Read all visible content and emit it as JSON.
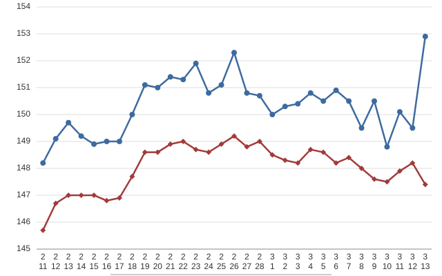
{
  "chart_data": {
    "type": "line",
    "categories": [
      [
        "2",
        "11"
      ],
      [
        "2",
        "12"
      ],
      [
        "2",
        "13"
      ],
      [
        "2",
        "14"
      ],
      [
        "2",
        "15"
      ],
      [
        "2",
        "16"
      ],
      [
        "2",
        "17"
      ],
      [
        "2",
        "18"
      ],
      [
        "2",
        "19"
      ],
      [
        "2",
        "20"
      ],
      [
        "2",
        "21"
      ],
      [
        "2",
        "22"
      ],
      [
        "2",
        "23"
      ],
      [
        "2",
        "24"
      ],
      [
        "2",
        "25"
      ],
      [
        "2",
        "26"
      ],
      [
        "2",
        "27"
      ],
      [
        "2",
        "28"
      ],
      [
        "3",
        "1"
      ],
      [
        "3",
        "2"
      ],
      [
        "3",
        "3"
      ],
      [
        "3",
        "4"
      ],
      [
        "3",
        "5"
      ],
      [
        "3",
        "6"
      ],
      [
        "3",
        "7"
      ],
      [
        "3",
        "8"
      ],
      [
        "3",
        "9"
      ],
      [
        "3",
        "10"
      ],
      [
        "3",
        "11"
      ],
      [
        "3",
        "12"
      ],
      [
        "3",
        "13"
      ]
    ],
    "series": [
      {
        "color": "#3d6a9f",
        "marker": "circle",
        "values": [
          148.2,
          149.1,
          149.7,
          149.2,
          148.9,
          149.0,
          149.0,
          150.0,
          151.1,
          151.0,
          151.4,
          151.3,
          151.9,
          150.8,
          151.1,
          152.3,
          150.8,
          150.7,
          150.0,
          150.3,
          150.4,
          150.8,
          150.5,
          150.9,
          150.5,
          149.5,
          150.5,
          148.8,
          150.1,
          149.5,
          152.9
        ]
      },
      {
        "color": "#a23a3a",
        "marker": "diamond",
        "values": [
          145.7,
          146.7,
          147.0,
          147.0,
          147.0,
          146.8,
          146.9,
          147.7,
          148.6,
          148.6,
          148.9,
          149.0,
          148.7,
          148.6,
          148.9,
          149.2,
          148.8,
          149.0,
          148.5,
          148.3,
          148.2,
          148.7,
          148.6,
          148.2,
          148.4,
          148.0,
          147.6,
          147.5,
          147.9,
          148.2,
          147.4
        ]
      }
    ],
    "ylim": [
      145,
      154
    ],
    "yticks": [
      145,
      146,
      147,
      148,
      149,
      150,
      151,
      152,
      153,
      154
    ],
    "grid": true
  }
}
